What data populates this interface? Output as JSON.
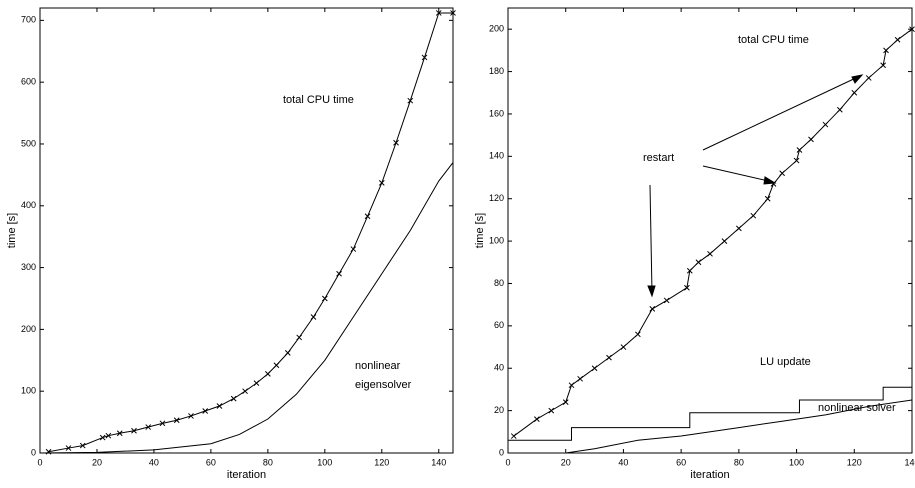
{
  "chart_data": [
    {
      "type": "line",
      "xlabel": "iteration",
      "ylabel": "time [s]",
      "xlim": [
        0,
        145
      ],
      "ylim": [
        0,
        720
      ],
      "xticks": [
        0,
        20,
        40,
        60,
        80,
        100,
        120,
        140
      ],
      "yticks": [
        0,
        100,
        200,
        300,
        400,
        500,
        600,
        700
      ],
      "annotations": [
        "total CPU time",
        "nonlinear",
        "eigensolver"
      ],
      "series": [
        {
          "name": "total CPU time",
          "color": "#000000",
          "marker": "x",
          "x": [
            3,
            10,
            15,
            22,
            24,
            28,
            33,
            38,
            43,
            48,
            53,
            58,
            63,
            68,
            72,
            76,
            80,
            83,
            87,
            91,
            96,
            100,
            105,
            110,
            115,
            120,
            125,
            130,
            135,
            140,
            145
          ],
          "values": [
            2,
            8,
            12,
            25,
            28,
            32,
            36,
            42,
            48,
            53,
            60,
            68,
            76,
            88,
            100,
            113,
            128,
            142,
            162,
            187,
            220,
            250,
            290,
            330,
            383,
            437,
            502,
            570,
            640,
            712,
            712
          ]
        },
        {
          "name": "nonlinear eigensolver",
          "color": "#000000",
          "x": [
            0,
            20,
            40,
            60,
            70,
            80,
            90,
            100,
            110,
            120,
            130,
            140,
            145
          ],
          "values": [
            0,
            1,
            5,
            15,
            30,
            55,
            95,
            150,
            220,
            290,
            360,
            440,
            470
          ]
        }
      ]
    },
    {
      "type": "line",
      "xlabel": "iteration",
      "ylabel": "time [s]",
      "xlim": [
        0,
        140
      ],
      "ylim": [
        0,
        210
      ],
      "xticks": [
        0,
        20,
        40,
        60,
        80,
        100,
        120,
        140
      ],
      "yticks": [
        0,
        20,
        40,
        60,
        80,
        100,
        120,
        140,
        160,
        180,
        200
      ],
      "annotations": [
        "total CPU time",
        "restart",
        "LU update",
        "nonlinear solver"
      ],
      "series": [
        {
          "name": "total CPU time",
          "color": "#000000",
          "marker": "x",
          "x": [
            2,
            10,
            15,
            20,
            22,
            25,
            30,
            35,
            40,
            45,
            50,
            55,
            62,
            63,
            66,
            70,
            75,
            80,
            85,
            90,
            92,
            95,
            100,
            101,
            105,
            110,
            115,
            120,
            125,
            130,
            131,
            135,
            140
          ],
          "values": [
            8,
            16,
            20,
            24,
            32,
            35,
            40,
            45,
            50,
            56,
            68,
            72,
            78,
            86,
            90,
            94,
            100,
            106,
            112,
            120,
            127,
            132,
            138,
            143,
            148,
            155,
            162,
            170,
            177,
            183,
            190,
            195,
            200
          ]
        },
        {
          "name": "LU update",
          "color": "#000000",
          "x": [
            0,
            22,
            22,
            63,
            63,
            101,
            101,
            130,
            130,
            140
          ],
          "values": [
            6,
            6,
            12,
            12,
            19,
            19,
            25,
            25,
            31,
            31
          ]
        },
        {
          "name": "nonlinear solver",
          "color": "#000000",
          "x": [
            0,
            20,
            30,
            45,
            60,
            80,
            95,
            110,
            125,
            140
          ],
          "values": [
            0,
            0,
            2,
            6,
            8,
            12,
            15,
            18,
            22,
            25
          ]
        }
      ]
    }
  ]
}
